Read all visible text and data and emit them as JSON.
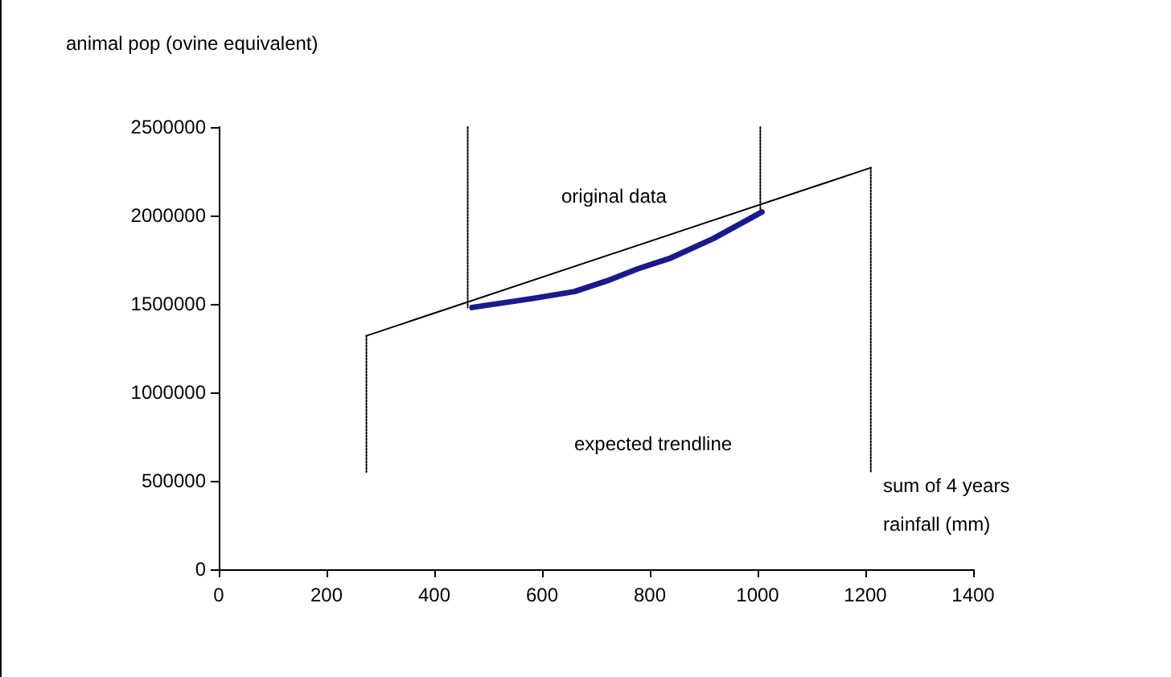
{
  "chart_data": {
    "type": "line",
    "ylabel": "animal pop (ovine equivalent)",
    "xlabel": "sum of 4 years rainfall (mm)",
    "xlim": [
      0,
      1400
    ],
    "xticks": [
      0,
      200,
      400,
      600,
      800,
      1000,
      1200,
      1400
    ],
    "ylim": [
      0,
      2500000
    ],
    "yticks": [
      0,
      500000,
      1000000,
      1500000,
      2000000,
      2500000
    ],
    "grid": false,
    "marker": "none",
    "series": [
      {
        "color": "#000000",
        "x": [
          274,
          1210
        ],
        "values": [
          1320000,
          2270000
        ]
      },
      {
        "color": "#1a1a8c",
        "x": [
          470,
          581,
          660,
          720,
          779,
          839,
          918,
          1008
        ],
        "values": [
          1480000,
          1530000,
          1570000,
          1630000,
          1700000,
          1760000,
          1870000,
          2020000
        ]
      },
      {
        "color": "#000000",
        "line_style": "dotted",
        "x": [
          274,
          274
        ],
        "values": [
          1320000,
          550000
        ]
      },
      {
        "color": "#000000",
        "line_style": "dotted",
        "x": [
          462,
          462
        ],
        "values": [
          2500000,
          1480000
        ]
      },
      {
        "color": "#000000",
        "line_style": "dotted",
        "x": [
          1005,
          1005
        ],
        "values": [
          2500000,
          2030000
        ]
      },
      {
        "color": "#000000",
        "line_style": "dotted",
        "x": [
          1210,
          1210
        ],
        "values": [
          2270000,
          550000
        ]
      }
    ],
    "annotations": [
      "original data",
      "expected trendline"
    ]
  }
}
